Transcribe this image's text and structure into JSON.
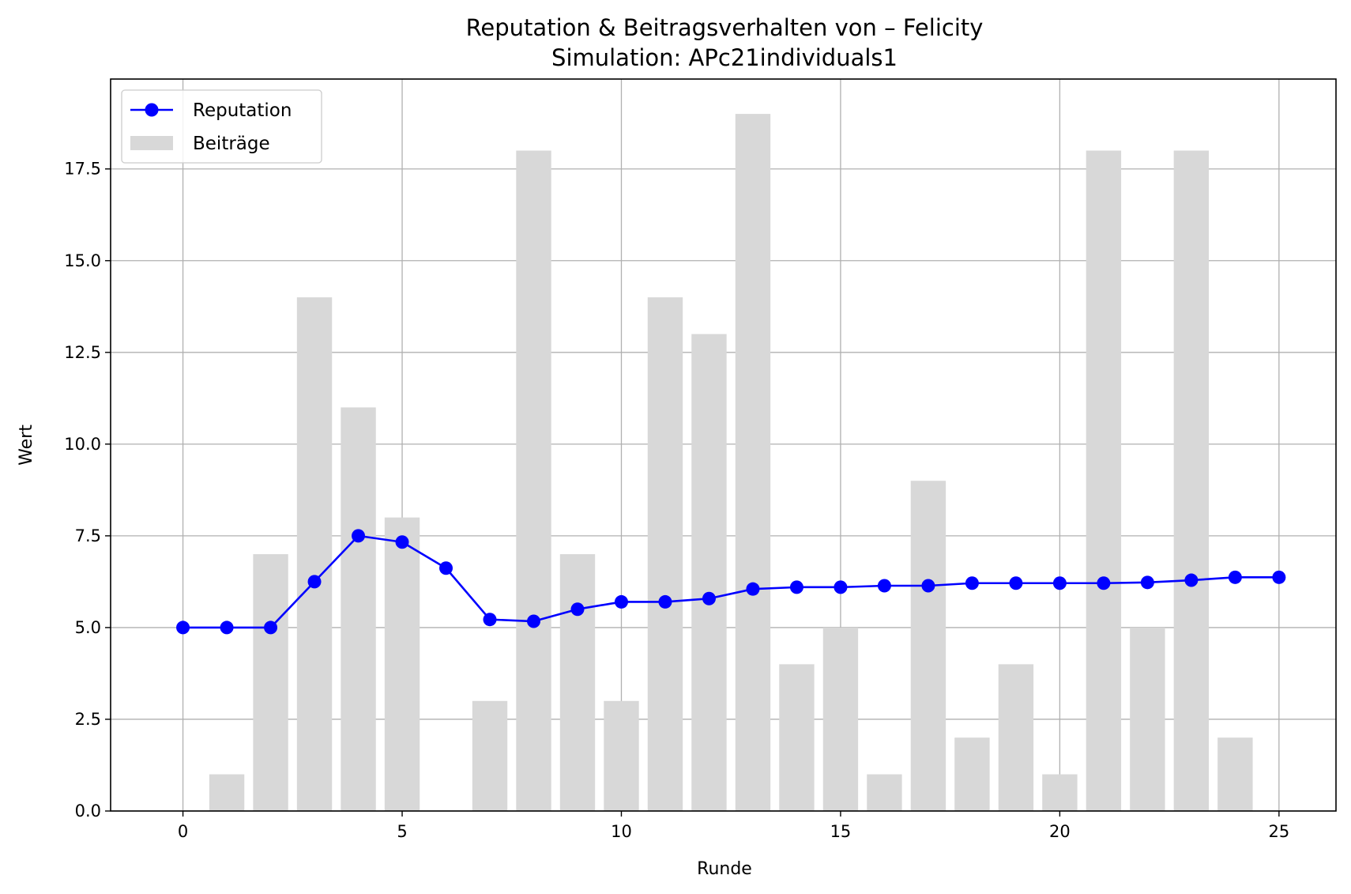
{
  "chart_data": {
    "type": "bar",
    "title": "Reputation & Beitragsverhalten von – Felicity",
    "subtitle": "Simulation: APc21individuals1",
    "xlabel": "Runde",
    "ylabel": "Wert",
    "xlim": [
      -1.65,
      26.3
    ],
    "ylim": [
      0,
      19.95
    ],
    "xticks": [
      0,
      5,
      10,
      15,
      20,
      25
    ],
    "xtick_labels": [
      "0",
      "5",
      "10",
      "15",
      "20",
      "25"
    ],
    "yticks": [
      0,
      2.5,
      5,
      7.5,
      10,
      12.5,
      15,
      17.5
    ],
    "ytick_labels": [
      "0.0",
      "2.5",
      "5.0",
      "7.5",
      "10.0",
      "12.5",
      "15.0",
      "17.5"
    ],
    "grid": true,
    "legend_position": "top-left",
    "series": [
      {
        "name": "Reputation",
        "type": "line",
        "marker": "circle",
        "color": "#0000ff",
        "x": [
          0,
          1,
          2,
          3,
          4,
          5,
          6,
          7,
          8,
          9,
          10,
          11,
          12,
          13,
          14,
          15,
          16,
          17,
          18,
          19,
          20,
          21,
          22,
          23,
          24,
          25
        ],
        "values": [
          5.0,
          5.0,
          5.0,
          6.25,
          7.5,
          7.33,
          6.62,
          5.22,
          5.17,
          5.5,
          5.7,
          5.7,
          5.79,
          6.05,
          6.1,
          6.1,
          6.14,
          6.14,
          6.21,
          6.21,
          6.21,
          6.21,
          6.23,
          6.29,
          6.37,
          6.37
        ]
      },
      {
        "name": "Beiträge",
        "type": "bar",
        "color": "#d8d8d8",
        "x": [
          0,
          1,
          2,
          3,
          4,
          5,
          6,
          7,
          8,
          9,
          10,
          11,
          12,
          13,
          14,
          15,
          16,
          17,
          18,
          19,
          20,
          21,
          22,
          23,
          24,
          25
        ],
        "values": [
          0,
          1,
          7,
          14,
          11,
          8,
          0,
          3,
          18,
          7,
          3,
          14,
          13,
          19,
          4,
          5,
          1,
          9,
          2,
          4,
          1,
          18,
          5,
          18,
          2,
          0
        ]
      }
    ]
  }
}
